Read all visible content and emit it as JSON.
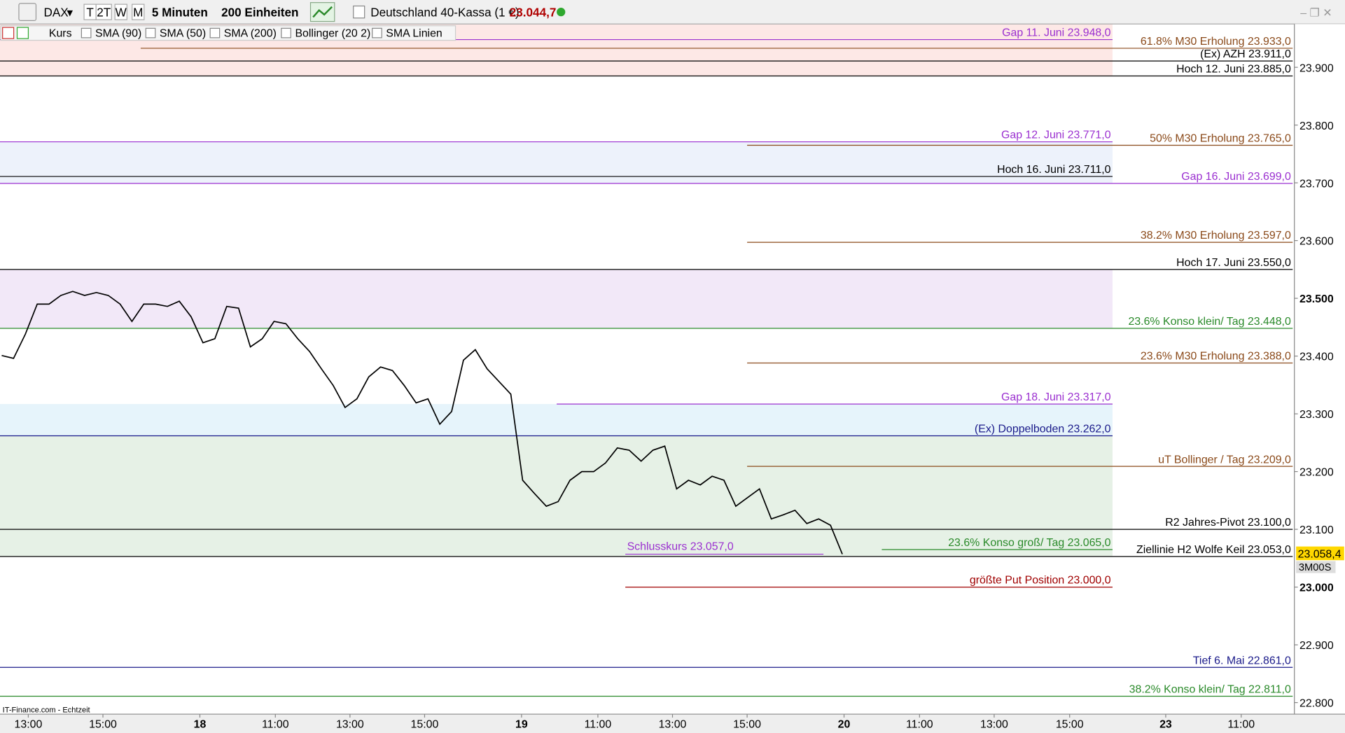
{
  "toolbar": {
    "symbol": "DAX",
    "periods": [
      "T",
      "2T",
      "W",
      "M"
    ],
    "interval": "5 Minuten",
    "units": "200 Einheiten",
    "instrument": "Deutschland 40-Kassa (1 €)",
    "last_price": "23.044,7"
  },
  "indicator_bar": {
    "items": [
      "Kurs",
      "SMA (90)",
      "SMA (50)",
      "SMA (200)",
      "Bollinger (20 2)",
      "SMA Linien"
    ]
  },
  "source": "IT-Finance.com - Echtzeit",
  "chart_data": {
    "type": "line",
    "color": "#000000",
    "values": [
      23401,
      23396,
      23438,
      23490,
      23490,
      23505,
      23512,
      23505,
      23510,
      23505,
      23490,
      23460,
      23490,
      23490,
      23486,
      23495,
      23468,
      23423,
      23430,
      23486,
      23483,
      23416,
      23430,
      23460,
      23456,
      23430,
      23408,
      23378,
      23349,
      23311,
      23326,
      23364,
      23381,
      23375,
      23349,
      23319,
      23326,
      23282,
      23304,
      23393,
      23411,
      23378,
      23356,
      23334,
      23185,
      23162,
      23140,
      23148,
      23185,
      23200,
      23200,
      23215,
      23241,
      23237,
      23218,
      23237,
      23244,
      23170,
      23185,
      23177,
      23192,
      23185,
      23140,
      23155,
      23170,
      23118,
      23125,
      23133,
      23110,
      23118,
      23107,
      23057
    ],
    "ylim": [
      22780,
      23975
    ],
    "yticks": [
      {
        "value": 22800,
        "label": "22.800"
      },
      {
        "value": 22900,
        "label": "22.900"
      },
      {
        "value": 23000,
        "label": "23.000"
      },
      {
        "value": 23100,
        "label": "23.100"
      },
      {
        "value": 23200,
        "label": "23.200"
      },
      {
        "value": 23300,
        "label": "23.300"
      },
      {
        "value": 23400,
        "label": "23.400"
      },
      {
        "value": 23500,
        "label": "23.500"
      },
      {
        "value": 23600,
        "label": "23.600"
      },
      {
        "value": 23700,
        "label": "23.700"
      },
      {
        "value": 23800,
        "label": "23.800"
      },
      {
        "value": 23900,
        "label": "23.900"
      }
    ],
    "bold_yticks": [
      23000,
      23500
    ],
    "xticks": [
      "13:00",
      "15:00",
      "18",
      "11:00",
      "13:00",
      "15:00",
      "19",
      "11:00",
      "13:00",
      "15:00",
      "20",
      "11:00",
      "13:00",
      "15:00",
      "23",
      "11:00"
    ],
    "price_marker": {
      "value": 23058.4,
      "label": "23.058,4"
    },
    "timer": "3M00S",
    "zones": [
      {
        "from": 23885,
        "to": 23975,
        "color": "#fde8e6"
      },
      {
        "from": 23699,
        "to": 23771,
        "color": "#edf2fb"
      },
      {
        "from": 23448,
        "to": 23550,
        "color": "#f2e8f8"
      },
      {
        "from": 23262,
        "to": 23317,
        "color": "#e6f4fb"
      },
      {
        "from": 23053,
        "to": 23262,
        "color": "#e6f1e6"
      }
    ],
    "levels": [
      {
        "label": "Gap 11. Juni 23.948,0",
        "value": 23948,
        "color": "#9b30d0"
      },
      {
        "label": "61.8%  M30 Erholung 23.933,0",
        "value": 23933,
        "color": "#8b4a1a"
      },
      {
        "label": "(Ex)  AZH 23.911,0",
        "value": 23911,
        "color": "#000000"
      },
      {
        "label": "Hoch 12. Juni 23.885,0",
        "value": 23885,
        "color": "#000000"
      },
      {
        "label": "Gap 12. Juni 23.771,0",
        "value": 23771,
        "color": "#9b30d0"
      },
      {
        "label": "50%  M30 Erholung 23.765,0",
        "value": 23765,
        "color": "#8b4a1a"
      },
      {
        "label": "Hoch 16. Juni 23.711,0",
        "value": 23711,
        "color": "#000000"
      },
      {
        "label": "Gap 16. Juni 23.699,0",
        "value": 23699,
        "color": "#9b30d0"
      },
      {
        "label": "38.2%  M30 Erholung 23.597,0",
        "value": 23597,
        "color": "#8b4a1a"
      },
      {
        "label": "Hoch 17. Juni 23.550,0",
        "value": 23550,
        "color": "#000000"
      },
      {
        "label": "23.6% Konso klein/ Tag 23.448,0",
        "value": 23448,
        "color": "#2a8a2a"
      },
      {
        "label": "23.6%  M30 Erholung 23.388,0",
        "value": 23388,
        "color": "#8b4a1a"
      },
      {
        "label": "Gap 18. Juni 23.317,0",
        "value": 23317,
        "color": "#9b30d0"
      },
      {
        "label": "(Ex) Doppelboden 23.262,0",
        "value": 23262,
        "color": "#1a1a8a"
      },
      {
        "label": "uT Bollinger / Tag 23.209,0",
        "value": 23209,
        "color": "#8b4a1a"
      },
      {
        "label": "R2 Jahres-Pivot  23.100,0",
        "value": 23100,
        "color": "#000000"
      },
      {
        "label": "23.6% Konso groß/ Tag 23.065,0",
        "value": 23065,
        "color": "#2a8a2a"
      },
      {
        "label": "Ziellinie H2 Wolfe Keil 23.053,0",
        "value": 23053,
        "color": "#000000"
      },
      {
        "label": "Schlusskurs 23.057,0",
        "value": 23057,
        "color": "#9b30d0"
      },
      {
        "label": "größte Put Position 23.000,0",
        "value": 23000,
        "color": "#a00000"
      },
      {
        "label": "Tief 6. Mai 22.861,0",
        "value": 22861,
        "color": "#1a1a8a"
      },
      {
        "label": "38.2% Konso klein/ Tag 22.811,0",
        "value": 22811,
        "color": "#2a8a2a"
      }
    ]
  }
}
